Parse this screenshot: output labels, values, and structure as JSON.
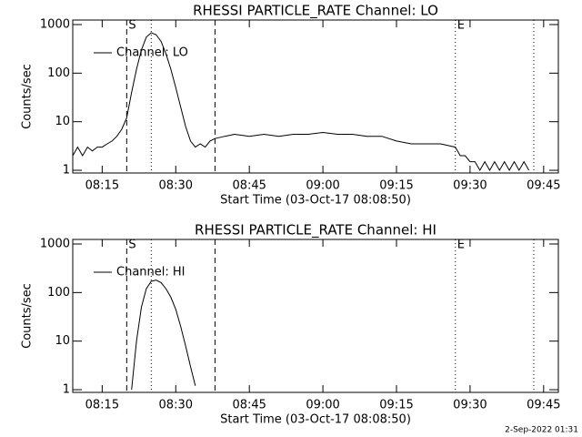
{
  "chart_data": [
    {
      "type": "line",
      "title": "RHESSI PARTICLE_RATE Channel: LO",
      "xlabel": "Start Time (03-Oct-17 08:08:50)",
      "ylabel": "Counts/sec",
      "log_y": true,
      "legend": "upper left",
      "xlim": [
        "08:09",
        "09:48"
      ],
      "xticks": [
        "08:15",
        "08:30",
        "08:45",
        "09:00",
        "09:15",
        "09:30",
        "09:45"
      ],
      "ylim": [
        0.88,
        1240
      ],
      "yticks": [
        1,
        10,
        100,
        1000
      ],
      "vlines": [
        {
          "x": "08:20",
          "style": "dashed"
        },
        {
          "x": "08:38",
          "style": "dashed"
        },
        {
          "x": "08:25",
          "style": "dotted"
        },
        {
          "x": "09:27",
          "style": "dotted"
        },
        {
          "x": "09:43",
          "style": "dotted"
        }
      ],
      "annotations": [
        {
          "text": "S",
          "x": "08:20"
        },
        {
          "text": "E",
          "x": "09:27"
        }
      ],
      "x": [
        "08:09",
        "08:10",
        "08:11",
        "08:12",
        "08:13",
        "08:14",
        "08:15",
        "08:16",
        "08:17",
        "08:18",
        "08:19",
        "08:20",
        "08:21",
        "08:22",
        "08:23",
        "08:24",
        "08:25",
        "08:26",
        "08:27",
        "08:28",
        "08:29",
        "08:30",
        "08:31",
        "08:32",
        "08:33",
        "08:34",
        "08:35",
        "08:36",
        "08:37",
        "08:38",
        "08:40",
        "08:42",
        "08:45",
        "08:48",
        "08:51",
        "08:54",
        "08:57",
        "09:00",
        "09:03",
        "09:06",
        "09:09",
        "09:12",
        "09:15",
        "09:18",
        "09:21",
        "09:24",
        "09:27",
        "09:28",
        "09:29",
        "09:30",
        "09:31",
        "09:32",
        "09:33",
        "09:34",
        "09:35",
        "09:36",
        "09:37",
        "09:38",
        "09:39",
        "09:40",
        "09:41",
        "09:42"
      ],
      "series": [
        {
          "name": "Channel: LO",
          "color": "#000000",
          "values": [
            2,
            3,
            2,
            3,
            2.5,
            3,
            3,
            3.5,
            4,
            5,
            7,
            12,
            40,
            120,
            300,
            550,
            680,
            620,
            450,
            250,
            120,
            50,
            20,
            8,
            4,
            3,
            3.5,
            3,
            4,
            4.5,
            5,
            5.5,
            5,
            5.5,
            5,
            5.5,
            5.5,
            6,
            5.5,
            5.5,
            5,
            5,
            4,
            3.5,
            3.5,
            3.5,
            3,
            2,
            2,
            1.5,
            1.5,
            1,
            1.5,
            1,
            1.5,
            1,
            1.5,
            1,
            1.5,
            1,
            1.5,
            1
          ]
        }
      ]
    },
    {
      "type": "line",
      "title": "RHESSI PARTICLE_RATE Channel: HI",
      "xlabel": "Start Time (03-Oct-17 08:08:50)",
      "ylabel": "Counts/sec",
      "log_y": true,
      "legend": "upper left",
      "xlim": [
        "08:09",
        "09:48"
      ],
      "xticks": [
        "08:15",
        "08:30",
        "08:45",
        "09:00",
        "09:15",
        "09:30",
        "09:45"
      ],
      "ylim": [
        0.88,
        1240
      ],
      "yticks": [
        1,
        10,
        100,
        1000
      ],
      "vlines": [
        {
          "x": "08:20",
          "style": "dashed"
        },
        {
          "x": "08:38",
          "style": "dashed"
        },
        {
          "x": "08:25",
          "style": "dotted"
        },
        {
          "x": "09:27",
          "style": "dotted"
        },
        {
          "x": "09:43",
          "style": "dotted"
        }
      ],
      "annotations": [
        {
          "text": "S",
          "x": "08:20"
        },
        {
          "text": "E",
          "x": "09:27"
        }
      ],
      "x": [
        "08:21",
        "08:22",
        "08:23",
        "08:24",
        "08:25",
        "08:26",
        "08:27",
        "08:28",
        "08:29",
        "08:30",
        "08:31",
        "08:32",
        "08:33",
        "08:34"
      ],
      "series": [
        {
          "name": "Channel: HI",
          "color": "#000000",
          "values": [
            1,
            10,
            50,
            120,
            170,
            180,
            160,
            120,
            80,
            45,
            20,
            8,
            3,
            1.2
          ]
        }
      ]
    }
  ],
  "footer": "2-Sep-2022 01:31"
}
